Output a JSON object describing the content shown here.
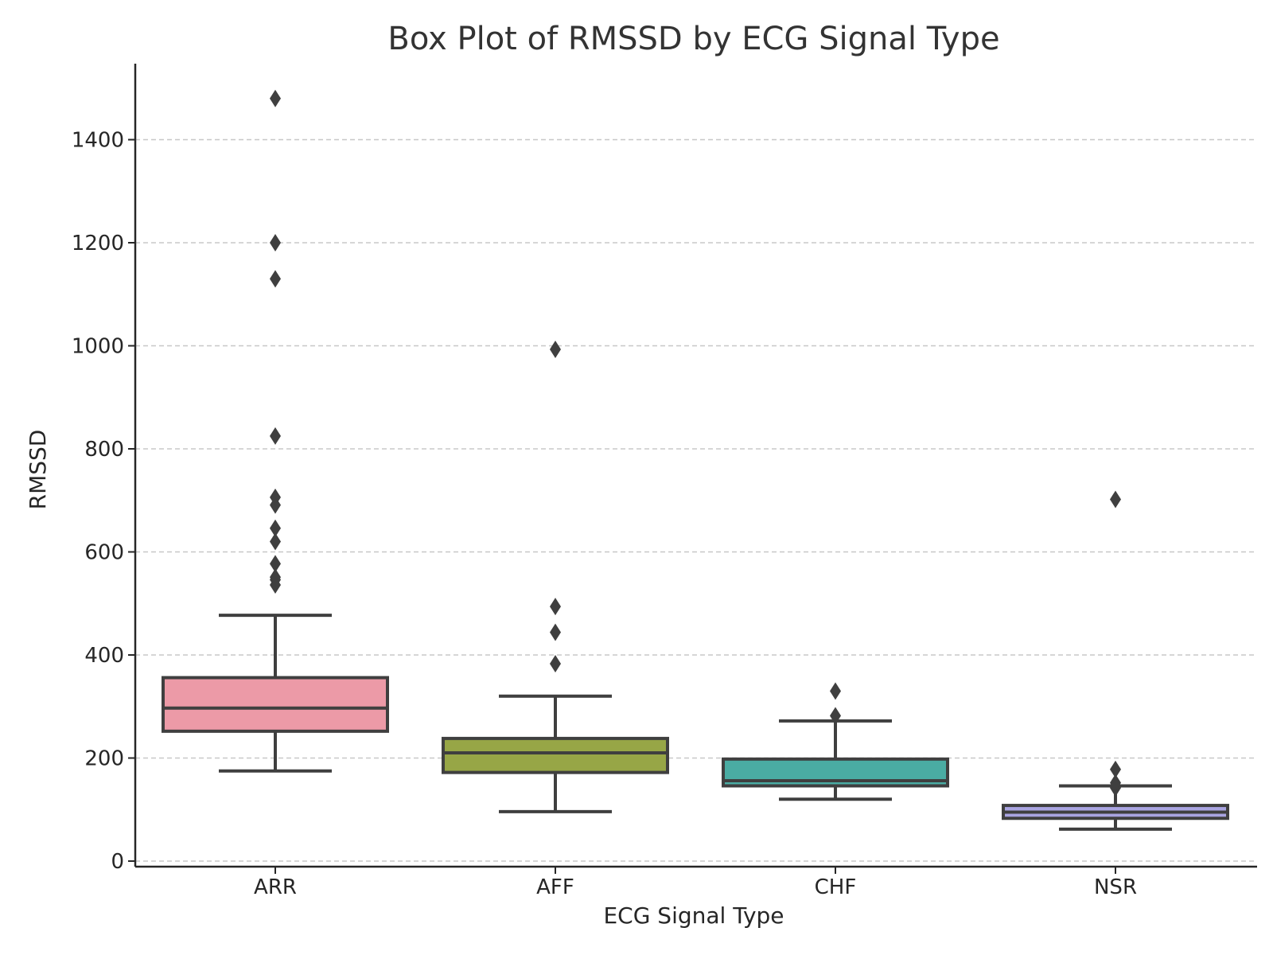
{
  "chart_data": {
    "type": "box",
    "title": "Box Plot of RMSSD by ECG Signal Type",
    "xlabel": "ECG Signal Type",
    "ylabel": "RMSSD",
    "ylim": [
      -10,
      1550
    ],
    "yticks": [
      0,
      200,
      400,
      600,
      800,
      1000,
      1200,
      1400
    ],
    "grid": "y-dashed",
    "categories": [
      "ARR",
      "AFF",
      "CHF",
      "NSR"
    ],
    "colors": [
      "#ec9aa7",
      "#97a646",
      "#4aaca3",
      "#a9a4e1"
    ],
    "boxes": [
      {
        "category": "ARR",
        "whisker_low": 175,
        "q1": 252,
        "median": 297,
        "q3": 356,
        "whisker_high": 477,
        "outliers": [
          536,
          546,
          551,
          577,
          620,
          646,
          691,
          706,
          825,
          1130,
          1200,
          1480
        ]
      },
      {
        "category": "AFF",
        "whisker_low": 96,
        "q1": 172,
        "median": 210,
        "q3": 238,
        "whisker_high": 320,
        "outliers": [
          383,
          444,
          494,
          993
        ]
      },
      {
        "category": "CHF",
        "whisker_low": 120,
        "q1": 146,
        "median": 156,
        "q3": 198,
        "whisker_high": 272,
        "outliers": [
          282,
          330
        ]
      },
      {
        "category": "NSR",
        "whisker_low": 62,
        "q1": 83,
        "median": 95,
        "q3": 108,
        "whisker_high": 146,
        "outliers": [
          142,
          152,
          178,
          702
        ]
      }
    ]
  }
}
